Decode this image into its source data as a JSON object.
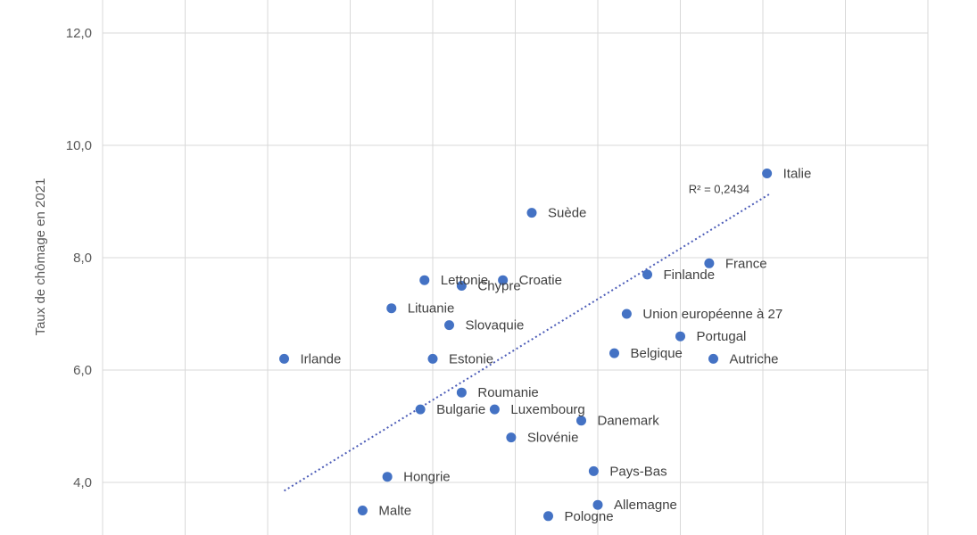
{
  "chart_data": {
    "type": "scatter",
    "ylabel": "Taux de chômage en 2021",
    "ylim": [
      3.0,
      12.5
    ],
    "y_ticks": [
      {
        "value": 4.0,
        "label": "4,0"
      },
      {
        "value": 6.0,
        "label": "6,0"
      },
      {
        "value": 8.0,
        "label": "8,0"
      },
      {
        "value": 10.0,
        "label": "10,0"
      },
      {
        "value": 12.0,
        "label": "12,0"
      }
    ],
    "x_gridline_count": 10,
    "xlim": [
      0,
      10
    ],
    "grid": true,
    "point_color": "#4472c4",
    "trendline": {
      "color": "#4d5db8",
      "style": "dotted",
      "from": {
        "x": 2.2,
        "y": 3.85
      },
      "to": {
        "x": 8.1,
        "y": 9.15
      },
      "annotation": "R² = 0,2434"
    },
    "points": [
      {
        "label": "Italie",
        "x": 8.05,
        "y": 9.5
      },
      {
        "label": "Suède",
        "x": 5.2,
        "y": 8.8
      },
      {
        "label": "France",
        "x": 7.35,
        "y": 7.9
      },
      {
        "label": "Finlande",
        "x": 6.6,
        "y": 7.7
      },
      {
        "label": "Lettonie",
        "x": 3.9,
        "y": 7.6
      },
      {
        "label": "Croatie",
        "x": 4.85,
        "y": 7.6
      },
      {
        "label": "Chypre",
        "x": 4.35,
        "y": 7.5
      },
      {
        "label": "Lituanie",
        "x": 3.5,
        "y": 7.1
      },
      {
        "label": "Union européenne à 27",
        "x": 6.35,
        "y": 7.0
      },
      {
        "label": "Slovaquie",
        "x": 4.2,
        "y": 6.8
      },
      {
        "label": "Portugal",
        "x": 7.0,
        "y": 6.6
      },
      {
        "label": "Belgique",
        "x": 6.2,
        "y": 6.3
      },
      {
        "label": "Irlande",
        "x": 2.2,
        "y": 6.2
      },
      {
        "label": "Estonie",
        "x": 4.0,
        "y": 6.2
      },
      {
        "label": "Autriche",
        "x": 7.4,
        "y": 6.2
      },
      {
        "label": "Roumanie",
        "x": 4.35,
        "y": 5.6
      },
      {
        "label": "Bulgarie",
        "x": 3.85,
        "y": 5.3
      },
      {
        "label": "Luxembourg",
        "x": 4.75,
        "y": 5.3
      },
      {
        "label": "Danemark",
        "x": 5.8,
        "y": 5.1
      },
      {
        "label": "Slovénie",
        "x": 4.95,
        "y": 4.8
      },
      {
        "label": "Pays-Bas",
        "x": 5.95,
        "y": 4.2
      },
      {
        "label": "Hongrie",
        "x": 3.45,
        "y": 4.1
      },
      {
        "label": "Allemagne",
        "x": 6.0,
        "y": 3.6
      },
      {
        "label": "Malte",
        "x": 3.15,
        "y": 3.5
      },
      {
        "label": "Pologne",
        "x": 5.4,
        "y": 3.4
      }
    ]
  }
}
